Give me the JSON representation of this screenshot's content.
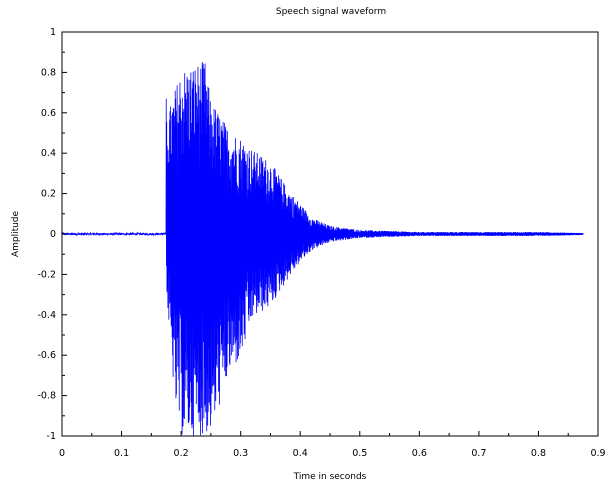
{
  "chart_data": {
    "type": "line",
    "title": "Speech signal waveform",
    "xlabel": "Time in seconds",
    "ylabel": "Amplitude",
    "xlim": [
      0,
      0.9
    ],
    "ylim": [
      -1,
      1
    ],
    "x_ticks": [
      0,
      0.1,
      0.2,
      0.3,
      0.4,
      0.5,
      0.6,
      0.7,
      0.8,
      0.9
    ],
    "x_tick_labels": [
      "0",
      "0.1",
      "0.2",
      "0.3",
      "0.4",
      "0.5",
      "0.6",
      "0.7",
      "0.8",
      "0.9"
    ],
    "y_ticks": [
      -1,
      -0.8,
      -0.6,
      -0.4,
      -0.2,
      0,
      0.2,
      0.4,
      0.6,
      0.8,
      1
    ],
    "y_tick_labels": [
      "-1",
      "-0.8",
      "-0.6",
      "-0.4",
      "-0.2",
      "0",
      "0.2",
      "0.4",
      "0.6",
      "0.8",
      "1"
    ],
    "grid": false,
    "series": [
      {
        "color": "#0000ff",
        "signal_range": [
          0,
          0.875
        ],
        "onset": 0.175,
        "envelope": {
          "x": [
            0,
            0.17,
            0.175,
            0.18,
            0.19,
            0.2,
            0.22,
            0.24,
            0.25,
            0.26,
            0.28,
            0.3,
            0.32,
            0.35,
            0.38,
            0.4,
            0.42,
            0.45,
            0.5,
            0.55,
            0.6,
            0.7,
            0.8,
            0.875
          ],
          "y_max": [
            0.005,
            0.01,
            0.68,
            0.62,
            0.72,
            0.82,
            0.84,
            0.86,
            0.66,
            0.62,
            0.52,
            0.48,
            0.42,
            0.36,
            0.22,
            0.15,
            0.08,
            0.04,
            0.02,
            0.015,
            0.01,
            0.01,
            0.01,
            0.005
          ],
          "y_min": [
            -0.005,
            -0.01,
            -0.28,
            -0.48,
            -0.86,
            -1.0,
            -1.0,
            -1.0,
            -0.98,
            -0.9,
            -0.7,
            -0.62,
            -0.42,
            -0.36,
            -0.22,
            -0.14,
            -0.08,
            -0.04,
            -0.02,
            -0.015,
            -0.01,
            -0.01,
            -0.01,
            -0.005
          ]
        }
      }
    ]
  }
}
